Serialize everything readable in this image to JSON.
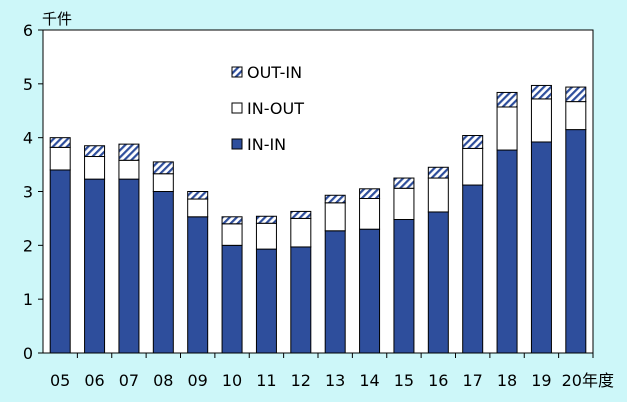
{
  "chart_data": {
    "type": "bar",
    "stacked": true,
    "title": "",
    "ylabel": "千件",
    "xlabel": "",
    "x_unit_suffix": "年度",
    "ylim": [
      0,
      6
    ],
    "yticks": [
      0,
      1,
      2,
      3,
      4,
      5,
      6
    ],
    "grid": false,
    "legend_position": "top-center",
    "categories": [
      "05",
      "06",
      "07",
      "08",
      "09",
      "10",
      "11",
      "12",
      "13",
      "14",
      "15",
      "16",
      "17",
      "18",
      "19",
      "20"
    ],
    "series": [
      {
        "name": "IN-IN",
        "color": "#2e4e9c",
        "pattern": "solid",
        "values": [
          3.4,
          3.23,
          3.23,
          3.0,
          2.53,
          2.0,
          1.93,
          1.97,
          2.27,
          2.3,
          2.48,
          2.62,
          3.12,
          3.77,
          3.92,
          4.15
        ]
      },
      {
        "name": "IN-OUT",
        "color": "#ffffff",
        "pattern": "solid",
        "values": [
          0.42,
          0.42,
          0.35,
          0.33,
          0.33,
          0.4,
          0.48,
          0.53,
          0.52,
          0.57,
          0.58,
          0.63,
          0.68,
          0.8,
          0.8,
          0.52
        ]
      },
      {
        "name": "OUT-IN",
        "color": "#ffffff",
        "pattern": "hatch",
        "values": [
          0.18,
          0.2,
          0.3,
          0.22,
          0.14,
          0.13,
          0.13,
          0.13,
          0.14,
          0.18,
          0.19,
          0.2,
          0.24,
          0.27,
          0.25,
          0.27
        ]
      }
    ]
  }
}
